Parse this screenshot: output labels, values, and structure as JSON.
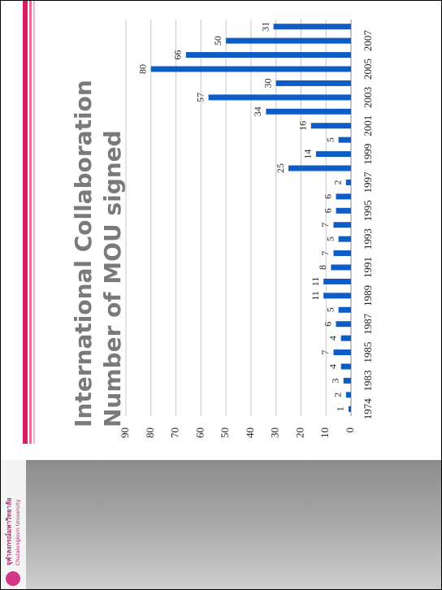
{
  "logo": {
    "thai": "จุฬาลงกรณ์มหาวิทยาลัย",
    "english": "Chulalongkorn University"
  },
  "chart_data": {
    "type": "bar",
    "title": "International Collaboration",
    "subtitle": "Number of MOU signed",
    "categories": [
      "1974",
      null,
      "1983",
      null,
      "1985",
      null,
      "1987",
      null,
      "1989",
      null,
      "1991",
      null,
      "1993",
      null,
      "1995",
      null,
      "1997",
      null,
      "1999",
      null,
      "2001",
      null,
      "2003",
      null,
      "2005",
      null,
      "2007",
      null
    ],
    "values": [
      1,
      2,
      3,
      4,
      7,
      4,
      6,
      5,
      11,
      11,
      8,
      7,
      5,
      7,
      6,
      6,
      2,
      25,
      14,
      5,
      16,
      34,
      57,
      30,
      80,
      66,
      50,
      31
    ],
    "color": "#0e5cc6",
    "ylim": [
      0,
      90
    ],
    "yticks": [
      0,
      10,
      20,
      30,
      40,
      50,
      60,
      70,
      80,
      90
    ],
    "grid": true
  }
}
